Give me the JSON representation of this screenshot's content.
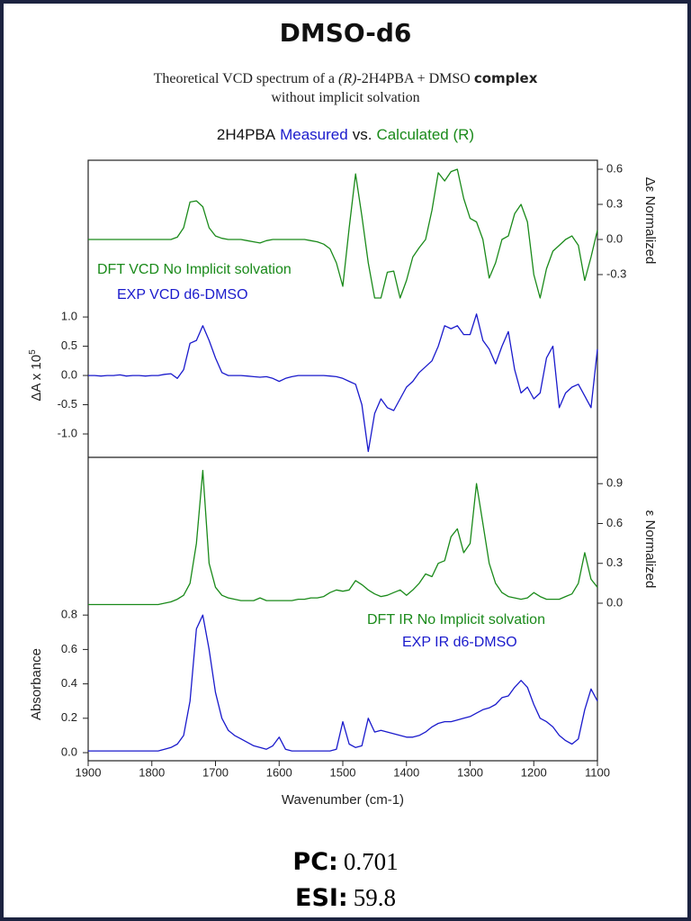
{
  "title": "DMSO-d6",
  "subtitle": {
    "line1": [
      "Theoretical VCD spectrum of a ",
      "(R)",
      "-2H4PBA + DMSO ",
      "complex"
    ],
    "line2": "without implicit solvation"
  },
  "header": [
    {
      "text": "2H4PBA",
      "color": "#111111"
    },
    {
      "text": "Measured",
      "color": "#1a1acc"
    },
    {
      "text": "vs.",
      "color": "#111111"
    },
    {
      "text": "Calculated (R)",
      "color": "#1a8a1a"
    }
  ],
  "footer": {
    "pc_label": "PC:",
    "pc": 0.701,
    "esi_label": "ESI:",
    "esi": 59.8
  },
  "chart_data": [
    {
      "type": "line",
      "ylabel": "ΔA x 10",
      "ylabel_sup": "5",
      "y2label": "Δε Normalized",
      "xlim": [
        1900,
        1100
      ],
      "ylim": [
        -1.4,
        3.68
      ],
      "yticks": [
        {
          "value": 1,
          "label": "1.0"
        },
        0.5,
        {
          "value": 0,
          "label": "0.0"
        },
        -0.5,
        {
          "value": -1,
          "label": "-1.0"
        }
      ],
      "y2lim": [
        -1.862,
        0.677
      ],
      "y2ticks": [
        0.6,
        0.3,
        {
          "value": 0,
          "label": "0.0"
        },
        -0.3
      ],
      "x": [
        1900,
        1890,
        1880,
        1870,
        1860,
        1850,
        1840,
        1830,
        1820,
        1810,
        1800,
        1790,
        1780,
        1770,
        1760,
        1750,
        1740,
        1730,
        1720,
        1710,
        1700,
        1690,
        1680,
        1670,
        1660,
        1650,
        1640,
        1630,
        1620,
        1610,
        1600,
        1590,
        1580,
        1570,
        1560,
        1550,
        1540,
        1530,
        1520,
        1510,
        1500,
        1490,
        1480,
        1470,
        1460,
        1450,
        1440,
        1430,
        1420,
        1410,
        1400,
        1390,
        1380,
        1370,
        1360,
        1350,
        1340,
        1330,
        1320,
        1310,
        1300,
        1290,
        1280,
        1270,
        1260,
        1250,
        1240,
        1230,
        1220,
        1210,
        1200,
        1190,
        1180,
        1170,
        1160,
        1150,
        1140,
        1130,
        1120,
        1110,
        1100
      ],
      "series": [
        {
          "name": "DFT VCD No Implicit solvation",
          "color": "#1a8a1a",
          "axis": "y2",
          "values": [
            0,
            0,
            0,
            0,
            0,
            0,
            0,
            0,
            0,
            0,
            0,
            0,
            0,
            0,
            0.02,
            0.1,
            0.32,
            0.33,
            0.28,
            0.1,
            0.03,
            0.01,
            0,
            0,
            0,
            -0.01,
            -0.02,
            -0.03,
            -0.01,
            0,
            0,
            0,
            0,
            0,
            0,
            -0.01,
            -0.02,
            -0.04,
            -0.08,
            -0.2,
            -0.4,
            0.1,
            0.56,
            0.2,
            -0.2,
            -0.5,
            -0.5,
            -0.28,
            -0.27,
            -0.5,
            -0.35,
            -0.15,
            -0.07,
            0,
            0.25,
            0.57,
            0.5,
            0.58,
            0.6,
            0.35,
            0.18,
            0.15,
            0,
            -0.33,
            -0.2,
            0,
            0.03,
            0.22,
            0.3,
            0.15,
            -0.3,
            -0.5,
            -0.25,
            -0.1,
            -0.05,
            0,
            0.03,
            -0.05,
            -0.35,
            -0.15,
            0.08
          ]
        },
        {
          "name": "EXP VCD d6-DMSO",
          "color": "#1a1acc",
          "values": [
            0,
            0,
            -0.01,
            0,
            0,
            0.01,
            -0.01,
            0,
            0,
            -0.01,
            0,
            0,
            0.02,
            0.03,
            -0.05,
            0.1,
            0.55,
            0.6,
            0.85,
            0.6,
            0.3,
            0.05,
            0,
            0,
            0,
            -0.01,
            -0.02,
            -0.03,
            -0.02,
            -0.05,
            -0.1,
            -0.05,
            -0.02,
            0,
            0,
            0,
            0,
            0,
            -0.01,
            -0.02,
            -0.05,
            -0.1,
            -0.15,
            -0.5,
            -1.3,
            -0.65,
            -0.4,
            -0.55,
            -0.6,
            -0.4,
            -0.2,
            -0.1,
            0.05,
            0.15,
            0.25,
            0.5,
            0.85,
            0.8,
            0.85,
            0.7,
            0.7,
            1.05,
            0.6,
            0.45,
            0.2,
            0.5,
            0.75,
            0.1,
            -0.3,
            -0.2,
            -0.4,
            -0.3,
            0.3,
            0.5,
            -0.55,
            -0.3,
            -0.2,
            -0.15,
            -0.35,
            -0.55,
            0.45
          ]
        }
      ]
    },
    {
      "type": "line",
      "ylabel": "Absorbance",
      "y2label": "ε Normalized",
      "xlabel": "Wavenumber (cm-1)",
      "xlim": [
        1900,
        1100
      ],
      "xticks": [
        1900,
        1800,
        1700,
        1600,
        1500,
        1400,
        1300,
        1200,
        1100
      ],
      "ylim": [
        -0.047,
        1.717
      ],
      "yticks": [
        {
          "value": 0,
          "label": "0.0"
        },
        0.2,
        0.4,
        0.6,
        0.8
      ],
      "y2lim": [
        -1.186,
        1.098
      ],
      "y2ticks": [
        0.9,
        0.6,
        0.3,
        {
          "value": 0,
          "label": "0.0"
        }
      ],
      "x": [
        1900,
        1890,
        1880,
        1870,
        1860,
        1850,
        1840,
        1830,
        1820,
        1810,
        1800,
        1790,
        1780,
        1770,
        1760,
        1750,
        1740,
        1730,
        1720,
        1710,
        1700,
        1690,
        1680,
        1670,
        1660,
        1650,
        1640,
        1630,
        1620,
        1610,
        1600,
        1590,
        1580,
        1570,
        1560,
        1550,
        1540,
        1530,
        1520,
        1510,
        1500,
        1490,
        1480,
        1470,
        1460,
        1450,
        1440,
        1430,
        1420,
        1410,
        1400,
        1390,
        1380,
        1370,
        1360,
        1350,
        1340,
        1330,
        1320,
        1310,
        1300,
        1290,
        1280,
        1270,
        1260,
        1250,
        1240,
        1230,
        1220,
        1210,
        1200,
        1190,
        1180,
        1170,
        1160,
        1150,
        1140,
        1130,
        1120,
        1110,
        1100
      ],
      "series": [
        {
          "name": "DFT IR No Implicit solvation",
          "color": "#1a8a1a",
          "axis": "y2",
          "values": [
            -0.01,
            -0.01,
            -0.01,
            -0.01,
            -0.01,
            -0.01,
            -0.01,
            -0.01,
            -0.01,
            -0.01,
            -0.01,
            -0.01,
            0,
            0.01,
            0.03,
            0.06,
            0.15,
            0.45,
            1.0,
            0.3,
            0.12,
            0.06,
            0.04,
            0.03,
            0.02,
            0.02,
            0.02,
            0.04,
            0.02,
            0.02,
            0.02,
            0.02,
            0.02,
            0.03,
            0.03,
            0.04,
            0.04,
            0.05,
            0.08,
            0.1,
            0.09,
            0.1,
            0.17,
            0.14,
            0.1,
            0.07,
            0.05,
            0.06,
            0.08,
            0.1,
            0.06,
            0.1,
            0.15,
            0.22,
            0.2,
            0.3,
            0.32,
            0.5,
            0.56,
            0.38,
            0.45,
            0.9,
            0.6,
            0.3,
            0.15,
            0.08,
            0.05,
            0.04,
            0.03,
            0.04,
            0.08,
            0.05,
            0.03,
            0.03,
            0.03,
            0.05,
            0.07,
            0.15,
            0.38,
            0.18,
            0.12
          ]
        },
        {
          "name": "EXP IR d6-DMSO",
          "color": "#1a1acc",
          "values": [
            0.01,
            0.01,
            0.01,
            0.01,
            0.01,
            0.01,
            0.01,
            0.01,
            0.01,
            0.01,
            0.01,
            0.01,
            0.02,
            0.03,
            0.05,
            0.1,
            0.3,
            0.72,
            0.8,
            0.6,
            0.35,
            0.2,
            0.13,
            0.1,
            0.08,
            0.06,
            0.04,
            0.03,
            0.02,
            0.04,
            0.09,
            0.02,
            0.01,
            0.01,
            0.01,
            0.01,
            0.01,
            0.01,
            0.01,
            0.02,
            0.18,
            0.05,
            0.03,
            0.04,
            0.2,
            0.12,
            0.13,
            0.12,
            0.11,
            0.1,
            0.09,
            0.09,
            0.1,
            0.12,
            0.15,
            0.17,
            0.18,
            0.18,
            0.19,
            0.2,
            0.21,
            0.23,
            0.25,
            0.26,
            0.28,
            0.32,
            0.33,
            0.38,
            0.42,
            0.38,
            0.28,
            0.2,
            0.18,
            0.15,
            0.1,
            0.07,
            0.05,
            0.08,
            0.25,
            0.37,
            0.3
          ]
        }
      ]
    }
  ]
}
